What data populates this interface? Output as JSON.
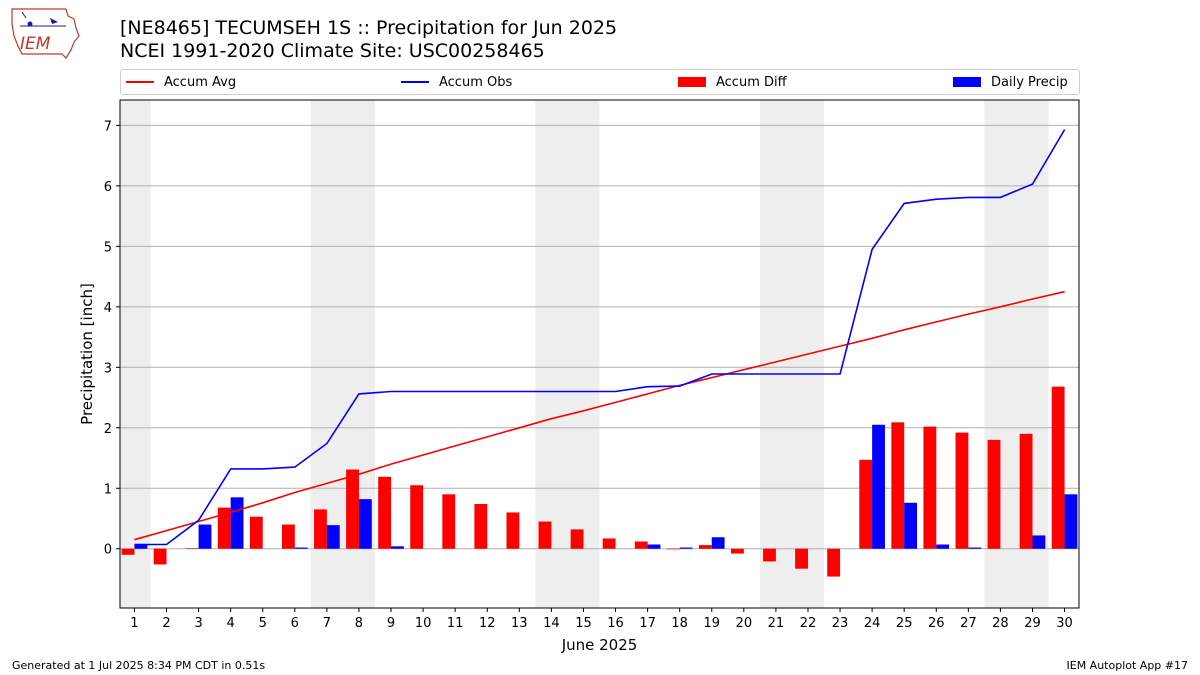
{
  "header": {
    "title_line1": "[NE8465] TECUMSEH 1S :: Precipitation for Jun 2025",
    "title_line2": "NCEI 1991-2020 Climate Site: USC00258465",
    "logo_text": "IEM"
  },
  "footer": {
    "generated": "Generated at 1 Jul 2025 8:34 PM CDT in 0.51s",
    "app": "IEM Autoplot App #17"
  },
  "colors": {
    "avg": "#ff0000",
    "obs": "#0000ff",
    "diff": "#ff0000",
    "daily": "#0000ff",
    "weekend": "#eeeeee",
    "grid": "#b0b0b0"
  },
  "chart_data": {
    "type": "bar",
    "xlabel": "June 2025",
    "ylabel": "Precipitation [inch]",
    "ylim": [
      -0.98,
      7.42
    ],
    "yticks": [
      0,
      1,
      2,
      3,
      4,
      5,
      6,
      7
    ],
    "grid": true,
    "legend_position": "top",
    "legend": [
      "Accum Avg",
      "Accum Obs",
      "Accum Diff",
      "Daily Precip"
    ],
    "days": [
      1,
      2,
      3,
      4,
      5,
      6,
      7,
      8,
      9,
      10,
      11,
      12,
      13,
      14,
      15,
      16,
      17,
      18,
      19,
      20,
      21,
      22,
      23,
      24,
      25,
      26,
      27,
      28,
      29,
      30
    ],
    "weekend_spans": [
      [
        1,
        1
      ],
      [
        7,
        8
      ],
      [
        14,
        15
      ],
      [
        21,
        22
      ],
      [
        28,
        29
      ]
    ],
    "series": [
      {
        "name": "Accum Avg",
        "kind": "line",
        "values": [
          0.15,
          0.3,
          0.45,
          0.6,
          0.76,
          0.93,
          1.08,
          1.23,
          1.4,
          1.55,
          1.7,
          1.85,
          2.0,
          2.15,
          2.28,
          2.42,
          2.56,
          2.7,
          2.83,
          2.96,
          3.09,
          3.22,
          3.35,
          3.48,
          3.62,
          3.75,
          3.88,
          4.0,
          4.13,
          4.25
        ]
      },
      {
        "name": "Accum Obs",
        "kind": "line",
        "values": [
          0.07,
          0.07,
          0.47,
          1.32,
          1.32,
          1.35,
          1.74,
          2.56,
          2.6,
          2.6,
          2.6,
          2.6,
          2.6,
          2.6,
          2.6,
          2.6,
          2.68,
          2.69,
          2.89,
          2.89,
          2.89,
          2.89,
          2.89,
          4.95,
          5.71,
          5.78,
          5.81,
          5.81,
          6.03,
          6.93
        ]
      },
      {
        "name": "Accum Diff",
        "kind": "bar",
        "values": [
          -0.1,
          -0.26,
          0.01,
          0.68,
          0.53,
          0.4,
          0.65,
          1.31,
          1.19,
          1.05,
          0.9,
          0.74,
          0.6,
          0.45,
          0.32,
          0.17,
          0.12,
          -0.01,
          0.06,
          -0.08,
          -0.21,
          -0.33,
          -0.46,
          1.47,
          2.09,
          2.02,
          1.92,
          1.8,
          1.9,
          2.68
        ]
      },
      {
        "name": "Daily Precip",
        "kind": "bar",
        "values": [
          0.07,
          0.0,
          0.4,
          0.85,
          0.0,
          0.02,
          0.39,
          0.82,
          0.04,
          0.0,
          0.0,
          0.0,
          0.0,
          0.0,
          0.0,
          0.0,
          0.07,
          0.02,
          0.19,
          0.0,
          0.0,
          0.0,
          0.0,
          2.05,
          0.76,
          0.07,
          0.02,
          0.0,
          0.22,
          0.9
        ]
      }
    ]
  }
}
